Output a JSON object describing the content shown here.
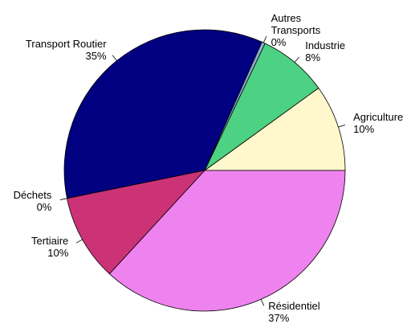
{
  "chart_data": {
    "type": "pie",
    "categories": [
      "Agriculture",
      "Industrie",
      "Autres\nTransports",
      "Transport Routier",
      "Déchets",
      "Tertiaire",
      "Résidentiel"
    ],
    "values": [
      10,
      8,
      0.4,
      35,
      0,
      10,
      37
    ],
    "value_labels": [
      "10%",
      "8%",
      "0%",
      "35%",
      "0%",
      "10%",
      "37%"
    ],
    "colors": [
      "#fff8cc",
      "#4dd182",
      "#8aaad4",
      "#000080",
      "#7a3b8f",
      "#cc3377",
      "#ee82ee"
    ]
  }
}
